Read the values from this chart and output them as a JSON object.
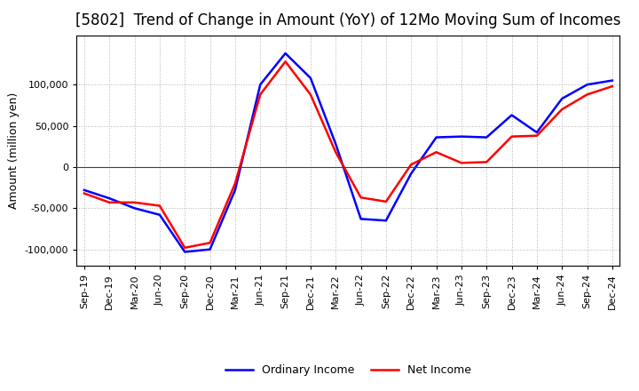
{
  "title": "[5802]  Trend of Change in Amount (YoY) of 12Mo Moving Sum of Incomes",
  "ylabel": "Amount (million yen)",
  "x_labels": [
    "Sep-19",
    "Dec-19",
    "Mar-20",
    "Jun-20",
    "Sep-20",
    "Dec-20",
    "Mar-21",
    "Jun-21",
    "Sep-21",
    "Dec-21",
    "Mar-22",
    "Jun-22",
    "Sep-22",
    "Dec-22",
    "Mar-23",
    "Jun-23",
    "Sep-23",
    "Dec-23",
    "Mar-24",
    "Jun-24",
    "Sep-24",
    "Dec-24"
  ],
  "ordinary_income": [
    -28000,
    -38000,
    -50000,
    -58000,
    -103000,
    -100000,
    -28000,
    100000,
    138000,
    108000,
    28000,
    -63000,
    -65000,
    -8000,
    36000,
    37000,
    36000,
    63000,
    42000,
    83000,
    100000,
    105000
  ],
  "net_income": [
    -32000,
    -43000,
    -43000,
    -47000,
    -98000,
    -92000,
    -20000,
    88000,
    128000,
    88000,
    18000,
    -37000,
    -42000,
    3000,
    18000,
    5000,
    6000,
    37000,
    38000,
    70000,
    88000,
    98000
  ],
  "ordinary_income_color": "#0000FF",
  "net_income_color": "#FF0000",
  "ylim": [
    -120000,
    160000
  ],
  "yticks": [
    -100000,
    -50000,
    0,
    50000,
    100000
  ],
  "background_color": "#FFFFFF",
  "plot_bg_color": "#FFFFFF",
  "legend_labels": [
    "Ordinary Income",
    "Net Income"
  ],
  "grid_color": "#808080",
  "linewidth": 1.8,
  "title_fontsize": 12,
  "ylabel_fontsize": 9,
  "tick_fontsize": 8
}
